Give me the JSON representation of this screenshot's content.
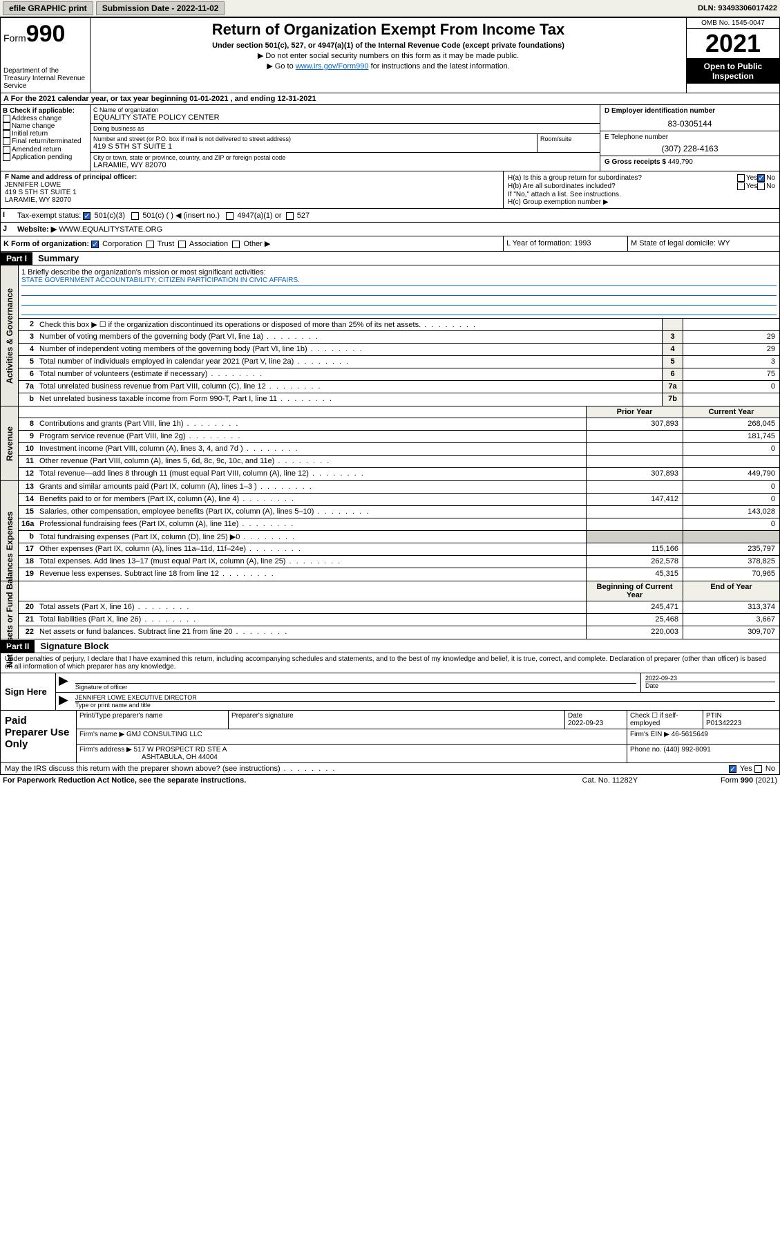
{
  "topbar": {
    "efile": "efile GRAPHIC print",
    "submission_label": "Submission Date - 2022-11-02",
    "dln": "DLN: 93493306017422"
  },
  "header": {
    "form_word": "Form",
    "form_num": "990",
    "dept": "Department of the Treasury\nInternal Revenue Service",
    "title": "Return of Organization Exempt From Income Tax",
    "sub1": "Under section 501(c), 527, or 4947(a)(1) of the Internal Revenue Code (except private foundations)",
    "sub2": "▶ Do not enter social security numbers on this form as it may be made public.",
    "sub3_pre": "▶ Go to ",
    "sub3_link": "www.irs.gov/Form990",
    "sub3_post": " for instructions and the latest information.",
    "omb": "OMB No. 1545-0047",
    "year": "2021",
    "inspect": "Open to Public Inspection"
  },
  "row_a": "A For the 2021 calendar year, or tax year beginning 01-01-2021   , and ending 12-31-2021",
  "col_b": {
    "hdr": "B Check if applicable:",
    "items": [
      "Address change",
      "Name change",
      "Initial return",
      "Final return/terminated",
      "Amended return",
      "Application pending"
    ]
  },
  "col_c": {
    "name_lbl": "C Name of organization",
    "name": "EQUALITY STATE POLICY CENTER",
    "dba_lbl": "Doing business as",
    "dba": "",
    "addr_lbl": "Number and street (or P.O. box if mail is not delivered to street address)",
    "suite_lbl": "Room/suite",
    "addr": "419 S 5TH ST SUITE 1",
    "city_lbl": "City or town, state or province, country, and ZIP or foreign postal code",
    "city": "LARAMIE, WY  82070"
  },
  "col_de": {
    "d_lbl": "D Employer identification number",
    "d_val": "83-0305144",
    "e_lbl": "E Telephone number",
    "e_val": "(307) 228-4163",
    "g_lbl": "G Gross receipts $",
    "g_val": "449,790"
  },
  "col_f": {
    "lbl": "F Name and address of principal officer:",
    "name": "JENNIFER LOWE",
    "addr1": "419 S 5TH ST SUITE 1",
    "addr2": "LARAMIE, WY  82070"
  },
  "col_h": {
    "ha": "H(a)  Is this a group return for subordinates?",
    "hb": "H(b)  Are all subordinates included?",
    "hb_note": "If \"No,\" attach a list. See instructions.",
    "hc": "H(c)  Group exemption number ▶"
  },
  "row_i": {
    "lbl": "Tax-exempt status:",
    "opt1": "501(c)(3)",
    "opt2": "501(c) (  ) ◀ (insert no.)",
    "opt3": "4947(a)(1) or",
    "opt4": "527"
  },
  "row_j": {
    "lbl": "Website: ▶",
    "val": "WWW.EQUALITYSTATE.ORG"
  },
  "row_k": {
    "lbl": "K Form of organization:",
    "opts": [
      "Corporation",
      "Trust",
      "Association",
      "Other ▶"
    ],
    "l": "L Year of formation: 1993",
    "m": "M State of legal domicile: WY"
  },
  "part1": {
    "hdr": "Part I",
    "title": "Summary"
  },
  "mission": {
    "q": "1   Briefly describe the organization's mission or most significant activities:",
    "text": "STATE GOVERNMENT ACCOUNTABILITY; CITIZEN PARTICIPATION IN CIVIC AFFAIRS."
  },
  "lines_gov": [
    {
      "n": "2",
      "t": "Check this box ▶ ☐  if the organization discontinued its operations or disposed of more than 25% of its net assets.",
      "box": "",
      "v": ""
    },
    {
      "n": "3",
      "t": "Number of voting members of the governing body (Part VI, line 1a)",
      "box": "3",
      "v": "29"
    },
    {
      "n": "4",
      "t": "Number of independent voting members of the governing body (Part VI, line 1b)",
      "box": "4",
      "v": "29"
    },
    {
      "n": "5",
      "t": "Total number of individuals employed in calendar year 2021 (Part V, line 2a)",
      "box": "5",
      "v": "3"
    },
    {
      "n": "6",
      "t": "Total number of volunteers (estimate if necessary)",
      "box": "6",
      "v": "75"
    },
    {
      "n": "7a",
      "t": "Total unrelated business revenue from Part VIII, column (C), line 12",
      "box": "7a",
      "v": "0"
    },
    {
      "n": "b",
      "t": "Net unrelated business taxable income from Form 990-T, Part I, line 11",
      "box": "7b",
      "v": ""
    }
  ],
  "col_hdrs": {
    "prior": "Prior Year",
    "current": "Current Year"
  },
  "lines_rev": [
    {
      "n": "8",
      "t": "Contributions and grants (Part VIII, line 1h)",
      "p": "307,893",
      "c": "268,045"
    },
    {
      "n": "9",
      "t": "Program service revenue (Part VIII, line 2g)",
      "p": "",
      "c": "181,745"
    },
    {
      "n": "10",
      "t": "Investment income (Part VIII, column (A), lines 3, 4, and 7d )",
      "p": "",
      "c": "0"
    },
    {
      "n": "11",
      "t": "Other revenue (Part VIII, column (A), lines 5, 6d, 8c, 9c, 10c, and 11e)",
      "p": "",
      "c": ""
    },
    {
      "n": "12",
      "t": "Total revenue—add lines 8 through 11 (must equal Part VIII, column (A), line 12)",
      "p": "307,893",
      "c": "449,790"
    }
  ],
  "lines_exp": [
    {
      "n": "13",
      "t": "Grants and similar amounts paid (Part IX, column (A), lines 1–3 )",
      "p": "",
      "c": "0"
    },
    {
      "n": "14",
      "t": "Benefits paid to or for members (Part IX, column (A), line 4)",
      "p": "147,412",
      "c": "0"
    },
    {
      "n": "15",
      "t": "Salaries, other compensation, employee benefits (Part IX, column (A), lines 5–10)",
      "p": "",
      "c": "143,028"
    },
    {
      "n": "16a",
      "t": "Professional fundraising fees (Part IX, column (A), line 11e)",
      "p": "",
      "c": "0"
    },
    {
      "n": "b",
      "t": "Total fundraising expenses (Part IX, column (D), line 25) ▶0",
      "p": "shade",
      "c": "shade"
    },
    {
      "n": "17",
      "t": "Other expenses (Part IX, column (A), lines 11a–11d, 11f–24e)",
      "p": "115,166",
      "c": "235,797"
    },
    {
      "n": "18",
      "t": "Total expenses. Add lines 13–17 (must equal Part IX, column (A), line 25)",
      "p": "262,578",
      "c": "378,825"
    },
    {
      "n": "19",
      "t": "Revenue less expenses. Subtract line 18 from line 12",
      "p": "45,315",
      "c": "70,965"
    }
  ],
  "col_hdrs2": {
    "begin": "Beginning of Current Year",
    "end": "End of Year"
  },
  "lines_net": [
    {
      "n": "20",
      "t": "Total assets (Part X, line 16)",
      "p": "245,471",
      "c": "313,374"
    },
    {
      "n": "21",
      "t": "Total liabilities (Part X, line 26)",
      "p": "25,468",
      "c": "3,667"
    },
    {
      "n": "22",
      "t": "Net assets or fund balances. Subtract line 21 from line 20",
      "p": "220,003",
      "c": "309,707"
    }
  ],
  "side_labels": {
    "gov": "Activities & Governance",
    "rev": "Revenue",
    "exp": "Expenses",
    "net": "Net Assets or Fund Balances"
  },
  "part2": {
    "hdr": "Part II",
    "title": "Signature Block"
  },
  "sig": {
    "intro": "Under penalties of perjury, I declare that I have examined this return, including accompanying schedules and statements, and to the best of my knowledge and belief, it is true, correct, and complete. Declaration of preparer (other than officer) is based on all information of which preparer has any knowledge.",
    "sign_here": "Sign Here",
    "sig_lbl": "Signature of officer",
    "date_lbl": "Date",
    "date": "2022-09-23",
    "name": "JENNIFER LOWE EXECUTIVE DIRECTOR",
    "name_lbl": "Type or print name and title"
  },
  "prep": {
    "title": "Paid Preparer Use Only",
    "h1": "Print/Type preparer's name",
    "h2": "Preparer's signature",
    "h3": "Date",
    "h3v": "2022-09-23",
    "h4": "Check ☐ if self-employed",
    "h5": "PTIN",
    "h5v": "P01342223",
    "firm_lbl": "Firm's name    ▶",
    "firm": "GMJ CONSULTING LLC",
    "ein_lbl": "Firm's EIN ▶",
    "ein": "46-5615649",
    "addr_lbl": "Firm's address ▶",
    "addr1": "517 W PROSPECT RD STE A",
    "addr2": "ASHTABULA, OH  44004",
    "phone_lbl": "Phone no.",
    "phone": "(440) 992-8091"
  },
  "discuss": "May the IRS discuss this return with the preparer shown above? (see instructions)",
  "footer": {
    "left": "For Paperwork Reduction Act Notice, see the separate instructions.",
    "mid": "Cat. No. 11282Y",
    "right": "Form 990 (2021)"
  },
  "colors": {
    "link": "#0066cc",
    "shade": "#d0d0c8",
    "header_bg": "#f0f0e8"
  }
}
